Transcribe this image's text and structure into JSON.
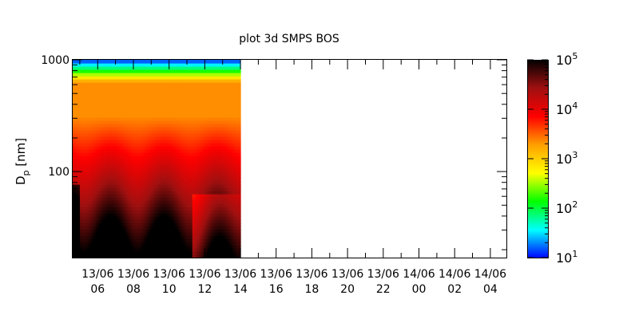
{
  "chart_data": {
    "type": "heatmap",
    "title": "plot 3d SMPS BOS",
    "ylabel_main": "D",
    "ylabel_sub": "p",
    "ylabel_unit": " [nm]",
    "y_scale": "log",
    "ylim": [
      17,
      1000
    ],
    "y_ticks": [
      {
        "value": 100,
        "label": "100"
      },
      {
        "value": 1000,
        "label": "1000"
      }
    ],
    "x_hours_range": [
      4.6,
      28.9
    ],
    "x_ticks": [
      {
        "hour": 6,
        "date": "13/06",
        "time": "06"
      },
      {
        "hour": 8,
        "date": "13/06",
        "time": "08"
      },
      {
        "hour": 10,
        "date": "13/06",
        "time": "10"
      },
      {
        "hour": 12,
        "date": "13/06",
        "time": "12"
      },
      {
        "hour": 14,
        "date": "13/06",
        "time": "14"
      },
      {
        "hour": 16,
        "date": "13/06",
        "time": "16"
      },
      {
        "hour": 18,
        "date": "13/06",
        "time": "18"
      },
      {
        "hour": 20,
        "date": "13/06",
        "time": "20"
      },
      {
        "hour": 22,
        "date": "13/06",
        "time": "22"
      },
      {
        "hour": 24,
        "date": "14/06",
        "time": "00"
      },
      {
        "hour": 26,
        "date": "14/06",
        "time": "02"
      },
      {
        "hour": 28,
        "date": "14/06",
        "time": "04"
      }
    ],
    "data_hours_range": [
      4.6,
      14.0
    ],
    "colorbar": {
      "scale": "log",
      "range": [
        10,
        100000
      ],
      "ticks": [
        {
          "base": "10",
          "exp": "1"
        },
        {
          "base": "10",
          "exp": "2"
        },
        {
          "base": "10",
          "exp": "3"
        },
        {
          "base": "10",
          "exp": "4"
        },
        {
          "base": "10",
          "exp": "5"
        }
      ],
      "colors": [
        "#0000ff",
        "#00ffff",
        "#00ff00",
        "#ffff00",
        "#ffa000",
        "#ff0000",
        "#a01010",
        "#000000"
      ]
    }
  }
}
